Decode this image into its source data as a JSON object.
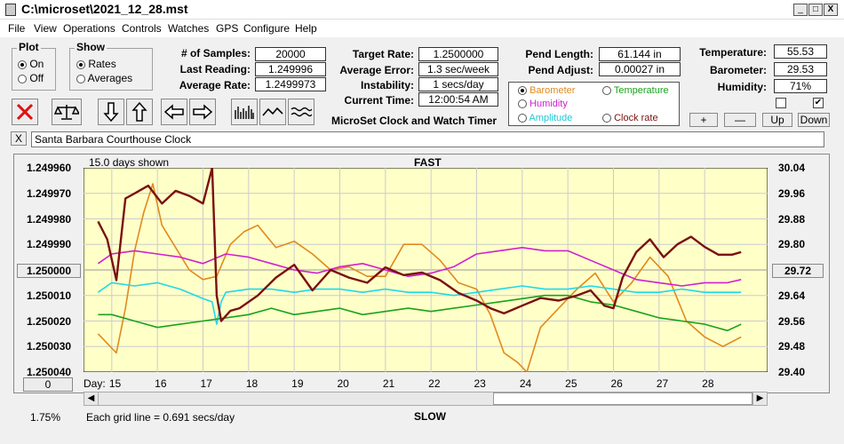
{
  "window": {
    "title": "C:\\microset\\2021_12_28.mst",
    "min_label": "_",
    "max_label": "□",
    "close_label": "X"
  },
  "menu": [
    "File",
    "View",
    "Operations",
    "Controls",
    "Watches",
    "GPS",
    "Configure",
    "Help"
  ],
  "plot_group": {
    "title": "Plot",
    "on": "On",
    "off": "Off",
    "selected": "On"
  },
  "show_group": {
    "title": "Show",
    "rates": "Rates",
    "averages": "Averages",
    "selected": "Rates"
  },
  "stats": {
    "samples_label": "# of Samples:",
    "samples": "20000",
    "last_reading_label": "Last Reading:",
    "last_reading": "1.249996",
    "avg_rate_label": "Average Rate:",
    "avg_rate": "1.2499973",
    "target_rate_label": "Target Rate:",
    "target_rate": "1.2500000",
    "avg_error_label": "Average Error:",
    "avg_error": "1.3 sec/week",
    "instability_label": "Instability:",
    "instability": "1 secs/day",
    "current_time_label": "Current Time:",
    "current_time": "12:00:54 AM",
    "pend_length_label": "Pend Length:",
    "pend_length": "61.144 in",
    "pend_adjust_label": "Pend Adjust:",
    "pend_adjust": "0.00027 in",
    "temperature_label": "Temperature:",
    "temperature": "55.53",
    "barometer_label": "Barometer:",
    "barometer": "29.53",
    "humidity_label": "Humidity:",
    "humidity": "71%"
  },
  "app_label": "MicroSet Clock and Watch Timer",
  "series_select": {
    "barometer": "Barometer",
    "temperature": "Temperature",
    "humidity": "Humidity",
    "amplitude": "Amplitude",
    "clock_rate": "Clock rate",
    "selected": "Barometer",
    "colors": {
      "barometer": "#e08a1e",
      "temperature": "#1aa31a",
      "humidity": "#d020d0",
      "amplitude": "#20d8e8",
      "clock_rate": "#7a1010"
    }
  },
  "sensor_buttons": {
    "plus": "+",
    "minus": "—",
    "up": "Up",
    "down": "Down"
  },
  "watch_name": "Santa Barbara Courthouse Clock",
  "close_x": "X",
  "chart": {
    "days_shown": "15.0 days shown",
    "top_label": "FAST",
    "bottom_label": "SLOW",
    "left_ticks": [
      "1.249960",
      "1.249970",
      "1.249980",
      "1.249990",
      "1.250000",
      "1.250010",
      "1.250020",
      "1.250030",
      "1.250040"
    ],
    "right_ticks": [
      "30.04",
      "29.96",
      "29.88",
      "29.80",
      "29.72",
      "29.64",
      "29.56",
      "29.48",
      "29.40"
    ],
    "left_center_button": "1.250000",
    "right_center_button": "29.72",
    "zero_button": "0",
    "day_label": "Day:",
    "days": [
      "15",
      "16",
      "17",
      "18",
      "19",
      "20",
      "21",
      "22",
      "23",
      "24",
      "25",
      "26",
      "27",
      "28"
    ],
    "grid_note": "Each grid line = 0.691 secs/day",
    "percent": "1.75%"
  },
  "chart_data": {
    "type": "line",
    "x_label": "Day",
    "ylim_left": [
      1.24996,
      1.25004
    ],
    "ylim_right": [
      29.4,
      30.04
    ],
    "series": [
      {
        "name": "Clock rate",
        "color": "#7a1010",
        "axis": "left",
        "x": [
          14.7,
          14.9,
          15.1,
          15.3,
          15.5,
          15.8,
          16.1,
          16.4,
          16.7,
          17.0,
          17.2,
          17.3,
          17.4,
          17.6,
          17.8,
          18.2,
          18.6,
          19.0,
          19.4,
          19.8,
          20.2,
          20.6,
          21.0,
          21.4,
          21.8,
          22.2,
          22.6,
          23.0,
          23.3,
          23.6,
          24.0,
          24.4,
          24.8,
          25.2,
          25.5,
          25.8,
          26.0,
          26.2,
          26.5,
          26.8,
          27.1,
          27.4,
          27.7,
          28.0,
          28.3,
          28.6,
          28.8
        ],
        "y": [
          1.249981,
          1.249988,
          1.250004,
          1.249972,
          1.24997,
          1.249967,
          1.249974,
          1.249969,
          1.249971,
          1.249974,
          1.24996,
          1.25001,
          1.25002,
          1.250016,
          1.250015,
          1.25001,
          1.250003,
          1.249998,
          1.250008,
          1.25,
          1.250003,
          1.250005,
          1.249999,
          1.250002,
          1.250001,
          1.250004,
          1.250009,
          1.250012,
          1.250015,
          1.250017,
          1.250014,
          1.250011,
          1.250012,
          1.25001,
          1.250008,
          1.250014,
          1.250015,
          1.250003,
          1.249993,
          1.249988,
          1.249995,
          1.24999,
          1.249987,
          1.249991,
          1.249994,
          1.249994,
          1.249993
        ]
      },
      {
        "name": "Barometer",
        "color": "#e08a1e",
        "axis": "right",
        "x": [
          14.7,
          14.9,
          15.1,
          15.3,
          15.5,
          15.7,
          15.9,
          16.1,
          16.4,
          16.7,
          17.0,
          17.3,
          17.6,
          17.9,
          18.2,
          18.6,
          19.0,
          19.4,
          19.8,
          20.2,
          20.6,
          21.0,
          21.4,
          21.8,
          22.2,
          22.6,
          23.0,
          23.3,
          23.6,
          23.9,
          24.1,
          24.4,
          24.8,
          25.2,
          25.6,
          26.0,
          26.4,
          26.8,
          27.2,
          27.6,
          28.0,
          28.4,
          28.8
        ],
        "y": [
          29.52,
          29.49,
          29.46,
          29.6,
          29.78,
          29.9,
          29.99,
          29.86,
          29.79,
          29.72,
          29.69,
          29.7,
          29.8,
          29.84,
          29.86,
          29.79,
          29.81,
          29.77,
          29.72,
          29.73,
          29.7,
          29.7,
          29.8,
          29.8,
          29.75,
          29.68,
          29.66,
          29.58,
          29.46,
          29.43,
          29.4,
          29.54,
          29.6,
          29.66,
          29.71,
          29.62,
          29.68,
          29.76,
          29.7,
          29.56,
          29.51,
          29.48,
          29.51
        ]
      },
      {
        "name": "Humidity",
        "color": "#d020d0",
        "axis": "right",
        "x": [
          14.7,
          15.0,
          15.5,
          16.0,
          16.5,
          17.0,
          17.5,
          18.0,
          18.5,
          19.0,
          19.5,
          20.0,
          20.5,
          21.0,
          21.5,
          22.0,
          22.5,
          23.0,
          23.5,
          24.0,
          24.5,
          25.0,
          25.5,
          26.0,
          26.5,
          27.0,
          27.5,
          28.0,
          28.5,
          28.8
        ],
        "y": [
          29.74,
          29.77,
          29.78,
          29.77,
          29.76,
          29.74,
          29.77,
          29.76,
          29.74,
          29.72,
          29.71,
          29.73,
          29.74,
          29.72,
          29.7,
          29.71,
          29.73,
          29.77,
          29.78,
          29.79,
          29.78,
          29.78,
          29.75,
          29.72,
          29.69,
          29.68,
          29.67,
          29.68,
          29.68,
          29.69
        ]
      },
      {
        "name": "Amplitude",
        "color": "#20d8e8",
        "axis": "right",
        "x": [
          14.7,
          15.0,
          15.5,
          16.0,
          16.5,
          17.0,
          17.2,
          17.3,
          17.4,
          17.5,
          18.0,
          18.5,
          19.0,
          19.5,
          20.0,
          20.5,
          21.0,
          21.5,
          22.0,
          22.5,
          23.0,
          23.5,
          24.0,
          24.5,
          25.0,
          25.5,
          26.0,
          26.5,
          27.0,
          27.5,
          28.0,
          28.5,
          28.8
        ],
        "y": [
          29.65,
          29.68,
          29.67,
          29.68,
          29.66,
          29.63,
          29.62,
          29.55,
          29.62,
          29.65,
          29.66,
          29.66,
          29.65,
          29.66,
          29.66,
          29.65,
          29.66,
          29.65,
          29.65,
          29.64,
          29.65,
          29.66,
          29.67,
          29.66,
          29.66,
          29.67,
          29.66,
          29.65,
          29.65,
          29.66,
          29.65,
          29.65,
          29.65
        ]
      },
      {
        "name": "Temperature",
        "color": "#1aa31a",
        "axis": "right",
        "x": [
          14.7,
          15.0,
          15.5,
          16.0,
          16.5,
          17.0,
          17.5,
          18.0,
          18.5,
          19.0,
          19.5,
          20.0,
          20.5,
          21.0,
          21.5,
          22.0,
          22.5,
          23.0,
          23.5,
          24.0,
          24.5,
          25.0,
          25.5,
          26.0,
          26.5,
          27.0,
          27.5,
          28.0,
          28.5,
          28.8
        ],
        "y": [
          29.58,
          29.58,
          29.56,
          29.54,
          29.55,
          29.56,
          29.57,
          29.58,
          29.6,
          29.58,
          29.59,
          29.6,
          29.58,
          29.59,
          29.6,
          29.59,
          29.6,
          29.61,
          29.62,
          29.63,
          29.64,
          29.64,
          29.62,
          29.61,
          29.59,
          29.57,
          29.56,
          29.55,
          29.53,
          29.55
        ]
      }
    ]
  }
}
